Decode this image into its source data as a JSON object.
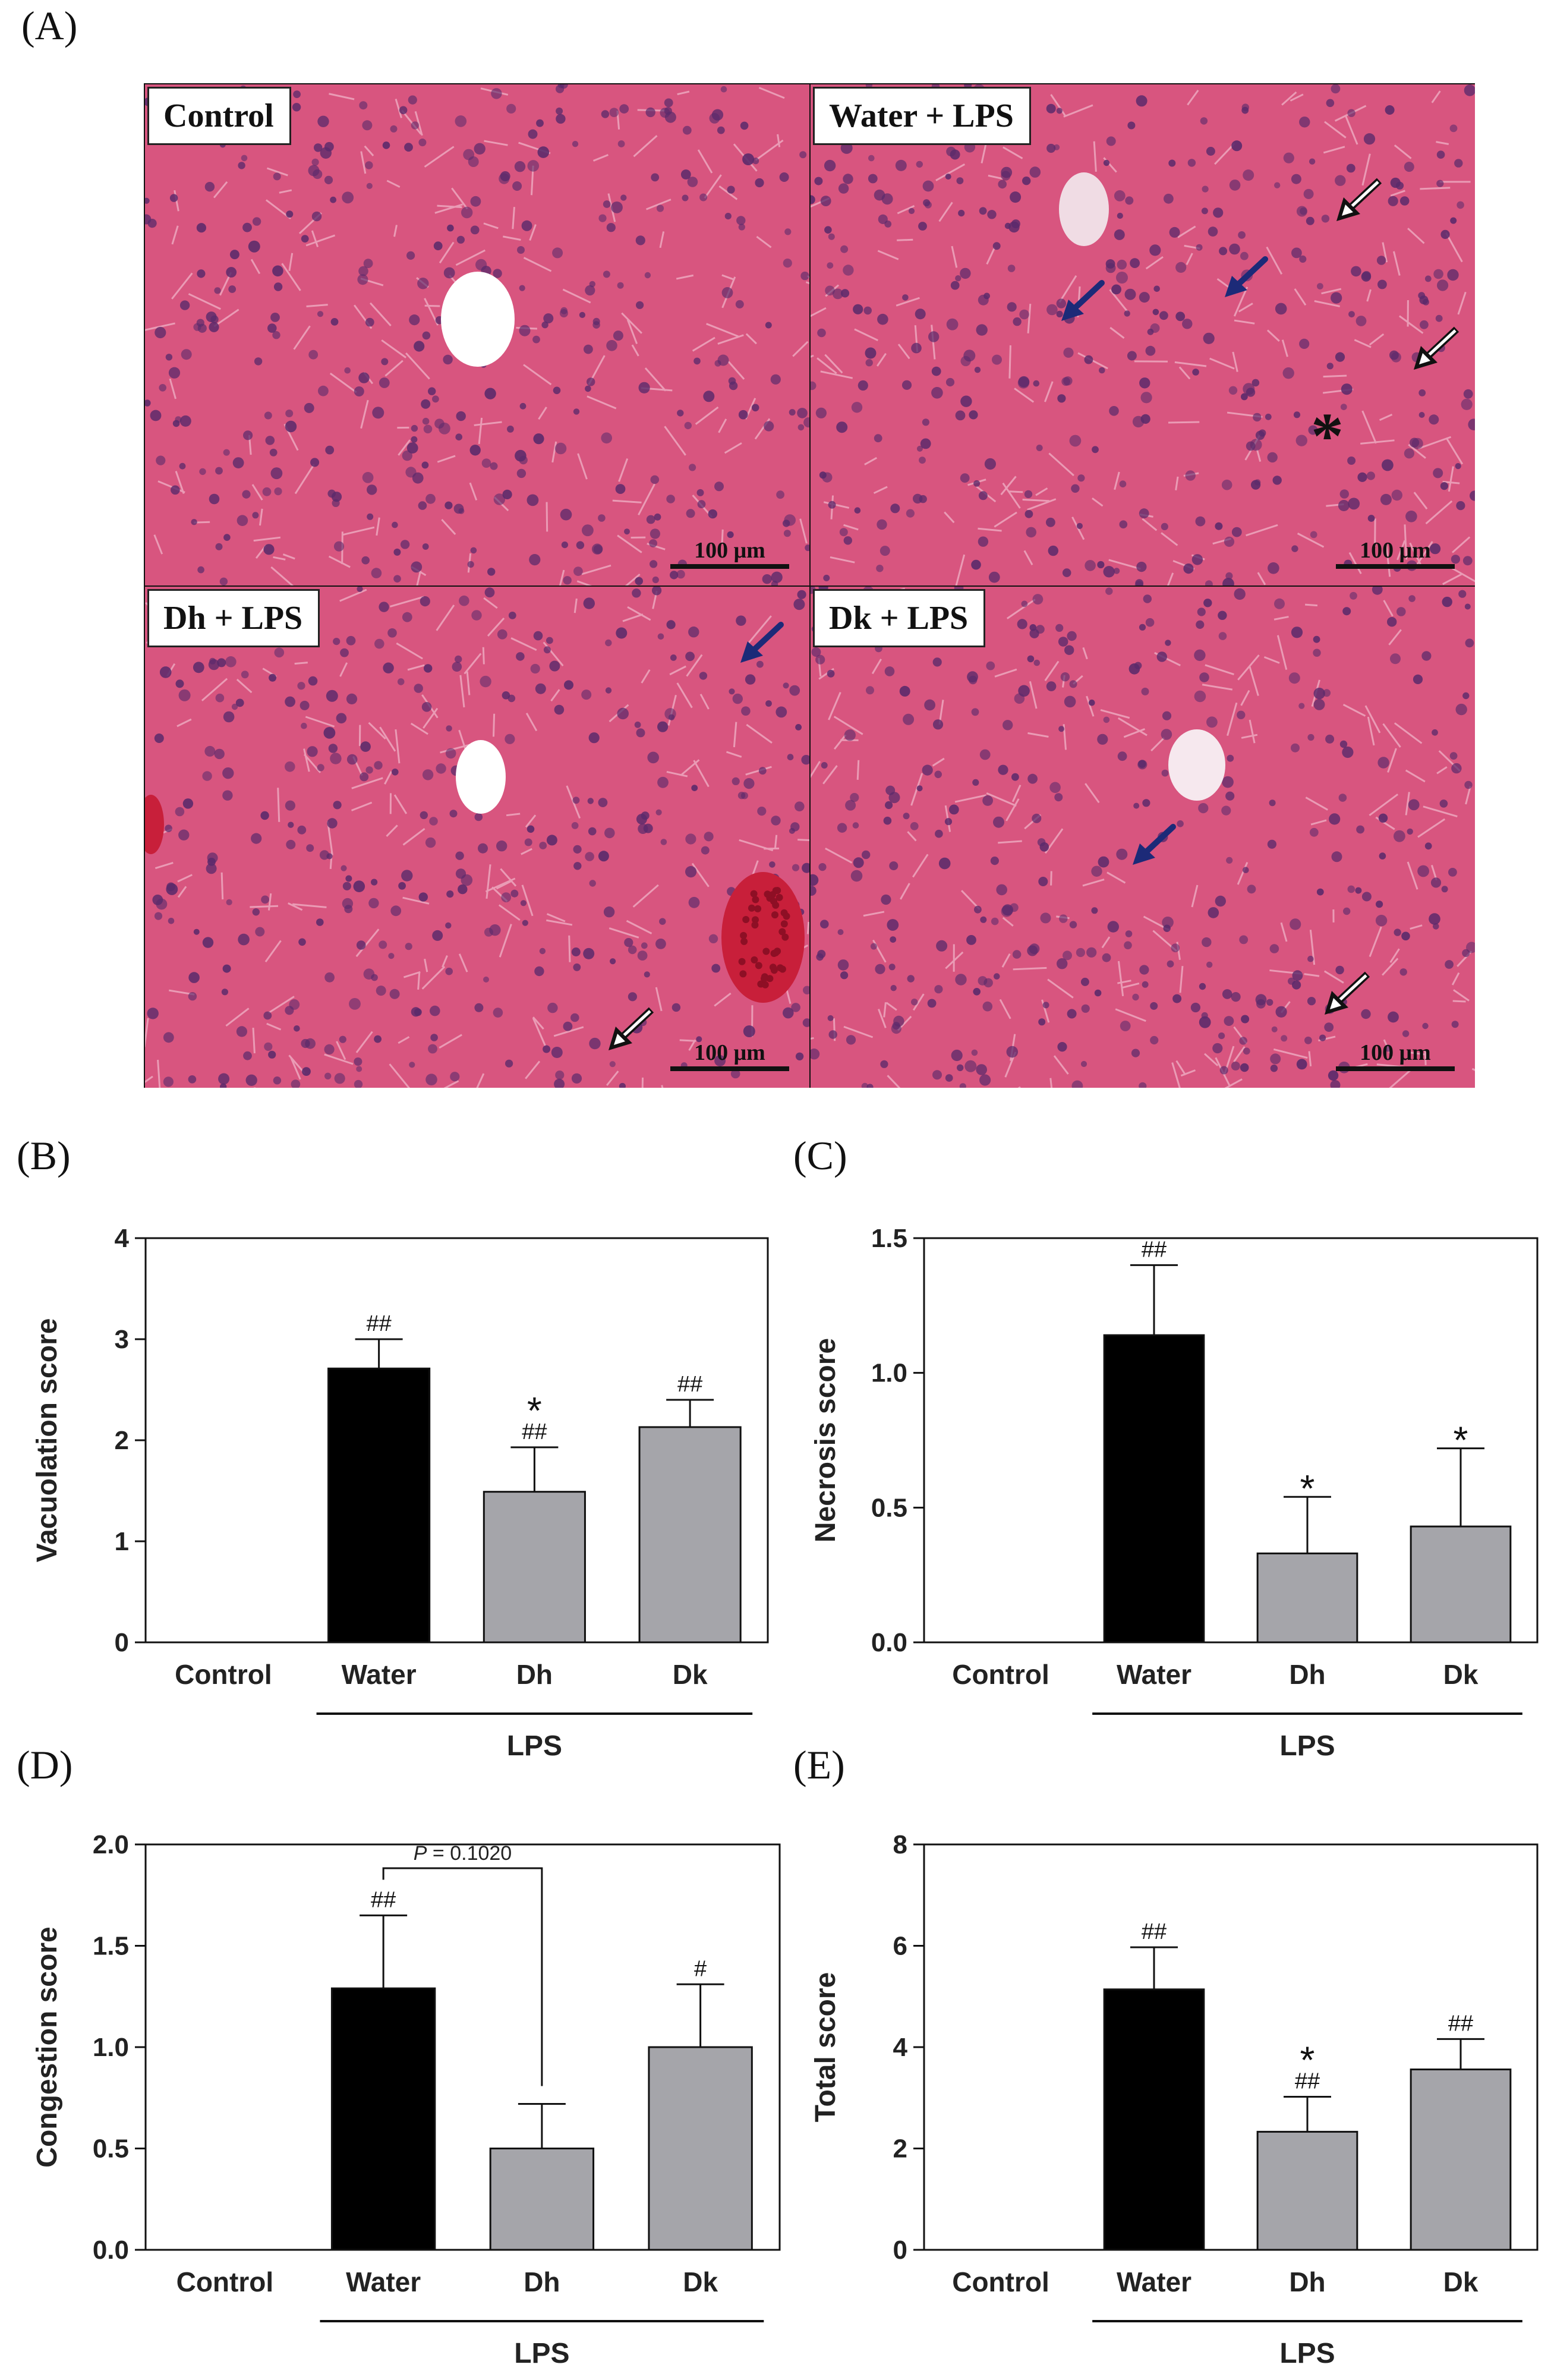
{
  "panels": {
    "a": "(A)",
    "b": "(B)",
    "c": "(C)",
    "d": "(D)",
    "e": "(E)"
  },
  "histology": {
    "tiles": [
      {
        "label": "Control",
        "scale": "100 μm"
      },
      {
        "label": "Water + LPS",
        "scale": "100 μm"
      },
      {
        "label": "Dh + LPS",
        "scale": "100 μm"
      },
      {
        "label": "Dk + LPS",
        "scale": "100 μm"
      }
    ],
    "markers": {
      "star": "*"
    },
    "colors": {
      "tissue": "#d8557f",
      "nuclei": "#5a2a6b",
      "arrow_solid": "#1c2a78",
      "rbc": "#c81f3a"
    }
  },
  "chart_data": [
    {
      "type": "bar",
      "ylabel": "Vacuolation score",
      "ylim": [
        0,
        4
      ],
      "yticks": [
        "0",
        "1",
        "2",
        "3",
        "4"
      ],
      "categories": [
        "Control",
        "Water",
        "Dh",
        "Dk"
      ],
      "group_label": "LPS",
      "values": [
        0,
        2.71,
        1.49,
        2.13
      ],
      "errors": [
        0,
        0.29,
        0.44,
        0.27
      ],
      "colors": [
        "#000000",
        "#000000",
        "#a5a5aa",
        "#a5a5aa"
      ],
      "annotations": [
        [],
        [
          "##"
        ],
        [
          "##",
          "*"
        ],
        [
          "##"
        ]
      ]
    },
    {
      "type": "bar",
      "ylabel": "Necrosis score",
      "ylim": [
        0,
        1.5
      ],
      "yticks": [
        "0.0",
        "0.5",
        "1.0",
        "1.5"
      ],
      "categories": [
        "Control",
        "Water",
        "Dh",
        "Dk"
      ],
      "group_label": "LPS",
      "values": [
        0,
        1.14,
        0.33,
        0.43
      ],
      "errors": [
        0,
        0.26,
        0.21,
        0.29
      ],
      "colors": [
        "#000000",
        "#000000",
        "#a5a5aa",
        "#a5a5aa"
      ],
      "annotations": [
        [],
        [
          "##"
        ],
        [
          "*"
        ],
        [
          "*"
        ]
      ]
    },
    {
      "type": "bar",
      "ylabel": "Congestion score",
      "ylim": [
        0,
        2.0
      ],
      "yticks": [
        "0.0",
        "0.5",
        "1.0",
        "1.5",
        "2.0"
      ],
      "categories": [
        "Control",
        "Water",
        "Dh",
        "Dk"
      ],
      "group_label": "LPS",
      "values": [
        0,
        1.29,
        0.5,
        1.0
      ],
      "errors": [
        0,
        0.36,
        0.22,
        0.31
      ],
      "colors": [
        "#000000",
        "#000000",
        "#a5a5aa",
        "#a5a5aa"
      ],
      "annotations": [
        [],
        [
          "##"
        ],
        [],
        [
          "#"
        ]
      ],
      "comparison": {
        "from": 1,
        "to": 2,
        "label_italic": "P",
        "label_rest": " = 0.1020"
      }
    },
    {
      "type": "bar",
      "ylabel": "Total score",
      "ylim": [
        0,
        8
      ],
      "yticks": [
        "0",
        "2",
        "4",
        "6",
        "8"
      ],
      "categories": [
        "Control",
        "Water",
        "Dh",
        "Dk"
      ],
      "group_label": "LPS",
      "values": [
        0,
        5.14,
        2.33,
        3.56
      ],
      "errors": [
        0,
        0.83,
        0.69,
        0.6
      ],
      "colors": [
        "#000000",
        "#000000",
        "#a5a5aa",
        "#a5a5aa"
      ],
      "annotations": [
        [],
        [
          "##"
        ],
        [
          "##",
          "*"
        ],
        [
          "##"
        ]
      ]
    }
  ]
}
